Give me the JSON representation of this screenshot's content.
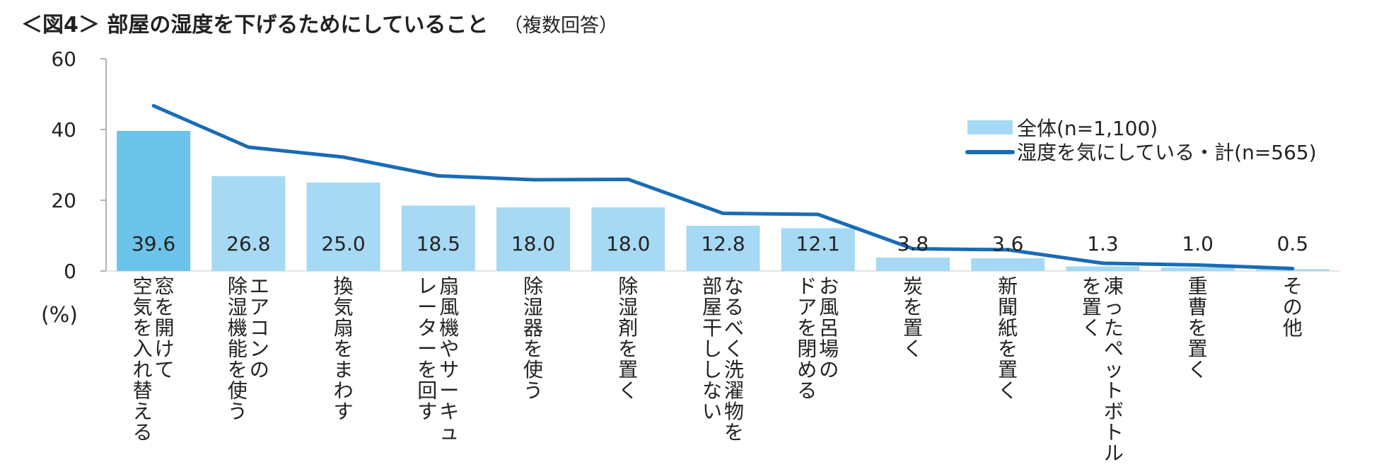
{
  "title": {
    "main": "＜図4＞ 部屋の湿度を下げるためにしていること",
    "sub": "（複数回答）"
  },
  "chart_data": {
    "type": "bar",
    "unit_label": "(%)",
    "ylim": [
      0,
      60
    ],
    "yticks": [
      0,
      20,
      40,
      60
    ],
    "categories": [
      [
        "窓を開けて",
        "空気を入れ替える"
      ],
      [
        "エアコンの",
        "除湿機能を使う"
      ],
      [
        "換気扇をまわす"
      ],
      [
        "扇風機やサーキュ",
        "レーターを回す"
      ],
      [
        "除湿器を使う"
      ],
      [
        "除湿剤を置く"
      ],
      [
        "なるべく洗濯物を",
        "部屋干ししない"
      ],
      [
        "お風呂場の",
        "ドアを閉める"
      ],
      [
        "炭を置く"
      ],
      [
        "新聞紙を置く"
      ],
      [
        "凍ったペットボトル",
        "を置く"
      ],
      [
        "重曹を置く"
      ],
      [
        "その他"
      ]
    ],
    "series": [
      {
        "name": "全体(n=1,100)",
        "type": "bar",
        "color": "#a6d9f3",
        "highlight_color": "#6cc3ea",
        "values": [
          39.6,
          26.8,
          25.0,
          18.5,
          18.0,
          18.0,
          12.8,
          12.1,
          3.8,
          3.6,
          1.3,
          1.0,
          0.5
        ],
        "value_labels": [
          "39.6",
          "26.8",
          "25.0",
          "18.5",
          "18.0",
          "18.0",
          "12.8",
          "12.1",
          "3.8",
          "3.6",
          "1.3",
          "1.0",
          "0.5"
        ]
      },
      {
        "name": "湿度を気にしている・計(n=565)",
        "type": "line",
        "color": "#1a6bb5",
        "values": [
          46.7,
          35.0,
          32.2,
          26.9,
          25.8,
          25.9,
          16.3,
          16.0,
          6.3,
          6.0,
          2.2,
          1.7,
          0.7
        ]
      }
    ]
  }
}
